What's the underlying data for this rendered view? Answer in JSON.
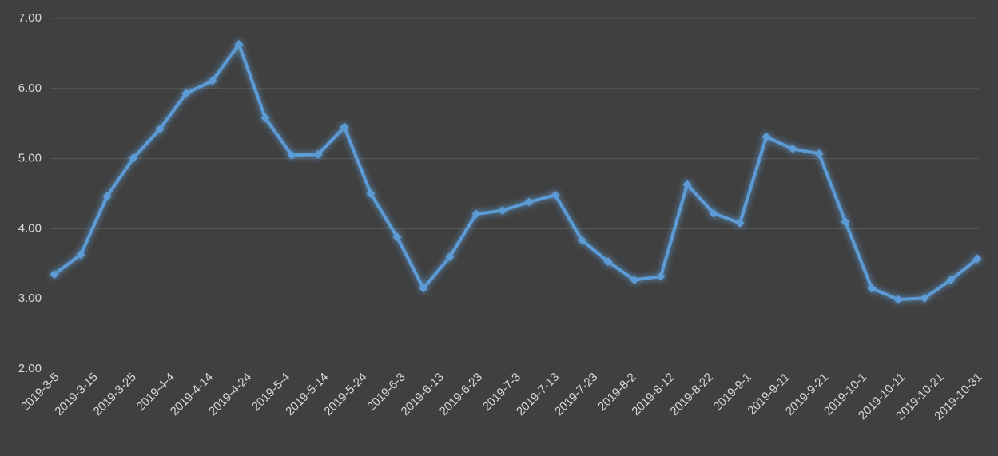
{
  "chart_data": {
    "type": "line",
    "xticks": [
      "2019-3-5",
      "2019-3-15",
      "2019-3-25",
      "2019-4-4",
      "2019-4-14",
      "2019-4-24",
      "2019-5-4",
      "2019-5-14",
      "2019-5-24",
      "2019-6-3",
      "2019-6-13",
      "2019-6-23",
      "2019-7-3",
      "2019-7-13",
      "2019-7-23",
      "2019-8-2",
      "2019-8-12",
      "2019-8-22",
      "2019-9-1",
      "2019-9-11",
      "2019-9-21",
      "2019-10-1",
      "2019-10-11",
      "2019-10-21",
      "2019-10-31"
    ],
    "series": [
      {
        "color": "#5b9bd5",
        "values": [
          3.35,
          3.63,
          4.46,
          5.01,
          5.42,
          5.93,
          6.11,
          6.63,
          5.58,
          5.05,
          5.06,
          5.45,
          4.5,
          3.88,
          3.15,
          3.6,
          4.21,
          4.26,
          4.38,
          4.48,
          3.84,
          3.53,
          3.27,
          3.32,
          4.63,
          4.22,
          4.08,
          5.31,
          5.14,
          5.07,
          4.1,
          3.15,
          2.99,
          3.01,
          3.27,
          3.57
        ]
      }
    ],
    "ylim": [
      2,
      7
    ],
    "yticks": [
      {
        "value": 2,
        "label": "2.00"
      },
      {
        "value": 3,
        "label": "3.00"
      },
      {
        "value": 4,
        "label": "4.00"
      },
      {
        "value": 5,
        "label": "5.00"
      },
      {
        "value": 6,
        "label": "6.00"
      },
      {
        "value": 7,
        "label": "7.00"
      }
    ],
    "grid": true
  }
}
